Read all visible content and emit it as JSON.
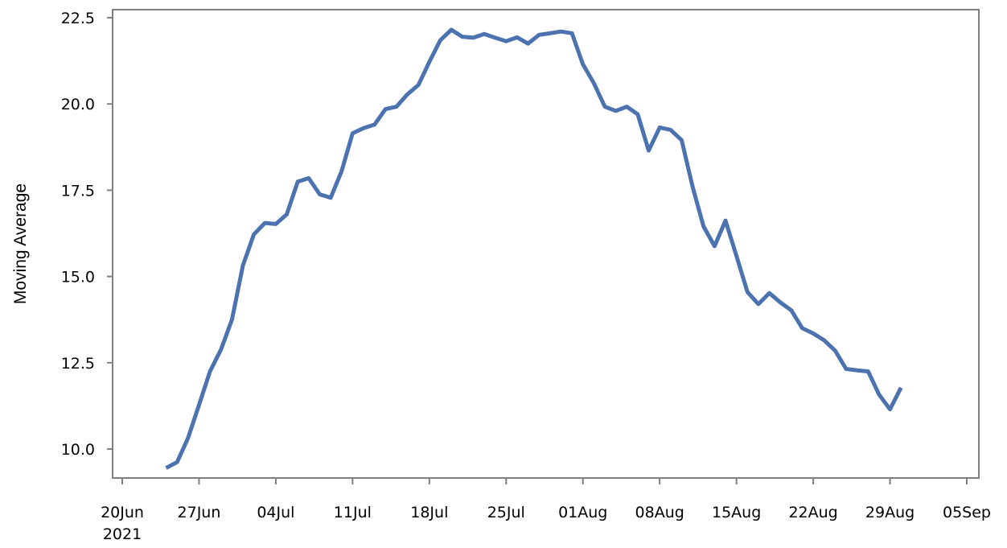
{
  "chart_data": {
    "type": "line",
    "title": "",
    "xlabel": "",
    "ylabel": "Moving Average",
    "year_label": "2021",
    "x_ticks": [
      "2021-06-20",
      "2021-06-27",
      "2021-07-04",
      "2021-07-11",
      "2021-07-18",
      "2021-07-25",
      "2021-08-01",
      "2021-08-08",
      "2021-08-15",
      "2021-08-22",
      "2021-08-29",
      "2021-09-05"
    ],
    "x_tick_labels": [
      "20Jun",
      "27Jun",
      "04Jul",
      "11Jul",
      "18Jul",
      "25Jul",
      "01Aug",
      "08Aug",
      "15Aug",
      "22Aug",
      "29Aug",
      "05Sep"
    ],
    "y_ticks": [
      10.0,
      12.5,
      15.0,
      17.5,
      20.0,
      22.5
    ],
    "y_tick_labels": [
      "10.0",
      "12.5",
      "15.0",
      "17.5",
      "20.0",
      "22.5"
    ],
    "xlim": [
      "2021-06-20",
      "2021-09-05"
    ],
    "ylim": [
      9.2,
      22.8
    ],
    "grid": false,
    "line_color": "#4c72b0",
    "series": [
      {
        "x": [
          "2021-06-24",
          "2021-06-25",
          "2021-06-26",
          "2021-06-27",
          "2021-06-28",
          "2021-06-29",
          "2021-06-30",
          "2021-07-01",
          "2021-07-02",
          "2021-07-03",
          "2021-07-04",
          "2021-07-05",
          "2021-07-06",
          "2021-07-07",
          "2021-07-08",
          "2021-07-09",
          "2021-07-10",
          "2021-07-11",
          "2021-07-12",
          "2021-07-13",
          "2021-07-14",
          "2021-07-15",
          "2021-07-16",
          "2021-07-17",
          "2021-07-18",
          "2021-07-19",
          "2021-07-20",
          "2021-07-21",
          "2021-07-22",
          "2021-07-23",
          "2021-07-24",
          "2021-07-25",
          "2021-07-26",
          "2021-07-27",
          "2021-07-28",
          "2021-07-29",
          "2021-07-30",
          "2021-07-31",
          "2021-08-01",
          "2021-08-02",
          "2021-08-03",
          "2021-08-04",
          "2021-08-05",
          "2021-08-06",
          "2021-08-07",
          "2021-08-08",
          "2021-08-09",
          "2021-08-10",
          "2021-08-11",
          "2021-08-12",
          "2021-08-13",
          "2021-08-14",
          "2021-08-15",
          "2021-08-16",
          "2021-08-17",
          "2021-08-18",
          "2021-08-19",
          "2021-08-20",
          "2021-08-21",
          "2021-08-22",
          "2021-08-23",
          "2021-08-24",
          "2021-08-25",
          "2021-08-26",
          "2021-08-27",
          "2021-08-28",
          "2021-08-29",
          "2021-08-30"
        ],
        "y": [
          9.45,
          9.62,
          10.32,
          11.28,
          12.25,
          12.88,
          13.75,
          15.32,
          16.22,
          16.55,
          16.52,
          16.8,
          17.75,
          17.85,
          17.38,
          17.28,
          18.05,
          19.15,
          19.3,
          19.4,
          19.85,
          19.92,
          20.28,
          20.55,
          21.22,
          21.85,
          22.15,
          21.95,
          21.92,
          22.03,
          21.92,
          21.82,
          21.93,
          21.75,
          22.0,
          22.05,
          22.1,
          22.05,
          21.15,
          20.6,
          19.92,
          19.8,
          19.92,
          19.7,
          18.65,
          19.32,
          19.25,
          18.95,
          17.6,
          16.45,
          15.88,
          16.62,
          15.6,
          14.55,
          14.2,
          14.52,
          14.25,
          14.02,
          13.5,
          13.35,
          13.15,
          12.85,
          12.32,
          12.28,
          12.25,
          11.58,
          11.15,
          11.78
        ]
      }
    ]
  }
}
